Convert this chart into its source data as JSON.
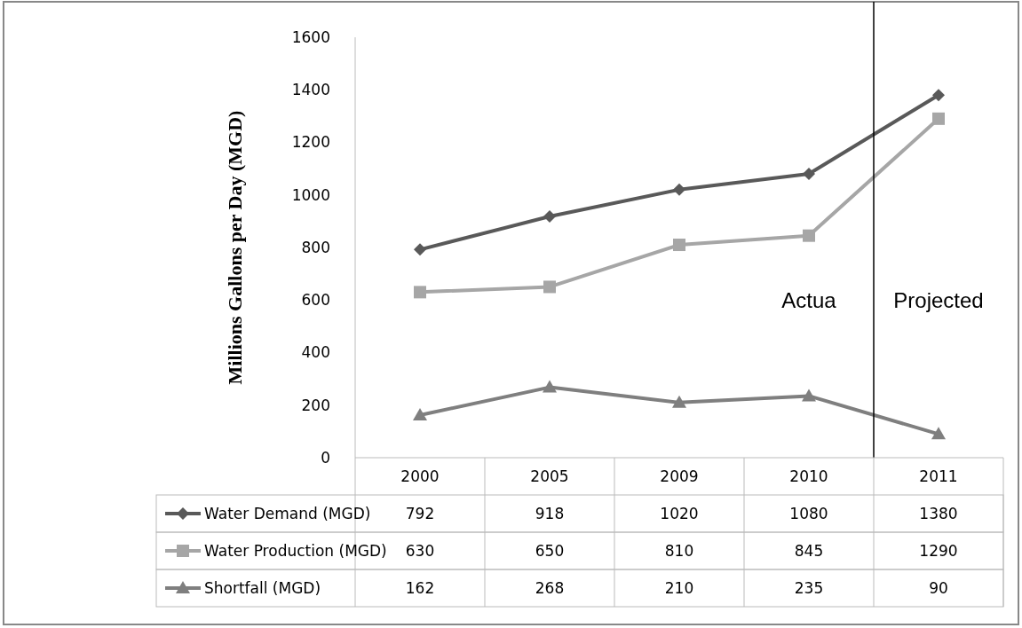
{
  "chart_data": {
    "type": "line",
    "ylabel": "Millions Gallons per Day (MGD)",
    "categories": [
      "2000",
      "2005",
      "2009",
      "2010",
      "2011"
    ],
    "series": [
      {
        "name": "Water Demand (MGD)",
        "color": "#595959",
        "marker": "diamond",
        "values": [
          792,
          918,
          1020,
          1080,
          1380
        ]
      },
      {
        "name": "Water Production (MGD)",
        "color": "#a6a6a6",
        "marker": "square",
        "values": [
          630,
          650,
          810,
          845,
          1290
        ]
      },
      {
        "name": "Shortfall (MGD)",
        "color": "#7f7f7f",
        "marker": "triangle",
        "values": [
          162,
          268,
          210,
          235,
          90
        ]
      }
    ],
    "ylim": [
      0,
      1600
    ],
    "yticks": [
      0,
      200,
      400,
      600,
      800,
      1000,
      1200,
      1400,
      1600
    ],
    "grid": false,
    "legend": "bottom",
    "data_labels": true,
    "annotations": [
      "Actua",
      "Projected"
    ]
  }
}
